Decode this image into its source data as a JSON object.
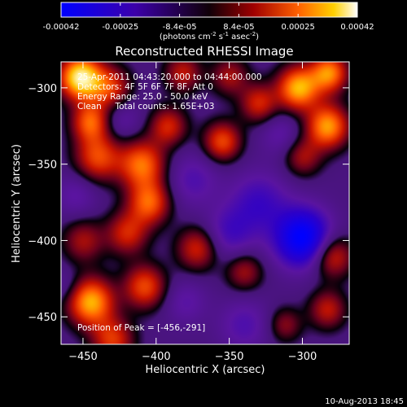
{
  "chart_data": {
    "type": "heatmap",
    "title": "Reconstructed RHESSI Image",
    "xlabel": "Heliocentric X (arcsec)",
    "ylabel": "Heliocentric Y (arcsec)",
    "xlim": [
      -465,
      -268
    ],
    "ylim": [
      -468,
      -283
    ],
    "x_ticks": [
      -450,
      -400,
      -350,
      -300
    ],
    "y_ticks": [
      -300,
      -350,
      -400,
      -450
    ],
    "colorbar": {
      "ticks": [
        "-0.00042",
        "-0.00025",
        "-8.4e-05",
        "8.4e-05",
        "0.00025",
        "0.00042"
      ],
      "range": [
        -0.00042,
        0.00042
      ],
      "unit_prefix": "(photons cm",
      "unit_exp1": "-2",
      "unit_mid": " s",
      "unit_exp2": "-1",
      "unit_mid2": " asec",
      "unit_exp3": "-2",
      "unit_suffix": ")"
    },
    "annotations": [
      "25-Apr-2011 04:43:20.000 to 04:44:00.000",
      "Detectors: 4F 5F 6F 7F 8F, Att 0",
      "Energy Range: 25.0 - 50.0 keV",
      "Clean     Total counts: 1.65E+03"
    ],
    "peak_label": "Position of Peak = [-456,-291]",
    "features": [
      {
        "x": -452,
        "y": -293,
        "v": 1.0,
        "s": 10
      },
      {
        "x": -445,
        "y": -322,
        "v": 0.6,
        "s": 9
      },
      {
        "x": -432,
        "y": -300,
        "v": 0.5,
        "s": 10
      },
      {
        "x": -440,
        "y": -345,
        "v": 0.55,
        "s": 11
      },
      {
        "x": -410,
        "y": -350,
        "v": 0.65,
        "s": 11
      },
      {
        "x": -405,
        "y": -375,
        "v": 0.6,
        "s": 10
      },
      {
        "x": -392,
        "y": -325,
        "v": 0.45,
        "s": 9
      },
      {
        "x": -420,
        "y": -395,
        "v": 0.45,
        "s": 10
      },
      {
        "x": -450,
        "y": -400,
        "v": 0.35,
        "s": 10
      },
      {
        "x": -445,
        "y": -440,
        "v": 0.8,
        "s": 11
      },
      {
        "x": -430,
        "y": -465,
        "v": 0.5,
        "s": 10
      },
      {
        "x": -408,
        "y": -430,
        "v": 0.55,
        "s": 10
      },
      {
        "x": -372,
        "y": -405,
        "v": 0.45,
        "s": 10
      },
      {
        "x": -340,
        "y": -420,
        "v": 0.35,
        "s": 9
      },
      {
        "x": -382,
        "y": -290,
        "v": 0.4,
        "s": 9
      },
      {
        "x": -350,
        "y": -292,
        "v": 0.35,
        "s": 9
      },
      {
        "x": -355,
        "y": -335,
        "v": 0.55,
        "s": 9
      },
      {
        "x": -330,
        "y": -310,
        "v": 0.45,
        "s": 9
      },
      {
        "x": -303,
        "y": -300,
        "v": 0.8,
        "s": 10
      },
      {
        "x": -282,
        "y": -290,
        "v": 0.7,
        "s": 9
      },
      {
        "x": -283,
        "y": -325,
        "v": 0.75,
        "s": 10
      },
      {
        "x": -300,
        "y": -345,
        "v": 0.35,
        "s": 9
      },
      {
        "x": -280,
        "y": -410,
        "v": 0.5,
        "s": 10
      },
      {
        "x": -283,
        "y": -445,
        "v": 0.4,
        "s": 9
      },
      {
        "x": -312,
        "y": -455,
        "v": 0.3,
        "s": 8
      },
      {
        "x": -300,
        "y": -398,
        "v": -0.9,
        "s": 13
      },
      {
        "x": -330,
        "y": -375,
        "v": -0.35,
        "s": 14
      },
      {
        "x": -350,
        "y": -395,
        "v": -0.3,
        "s": 12
      },
      {
        "x": -375,
        "y": -360,
        "v": -0.25,
        "s": 12
      },
      {
        "x": -340,
        "y": -455,
        "v": -0.25,
        "s": 12
      },
      {
        "x": -455,
        "y": -370,
        "v": -0.2,
        "s": 10
      },
      {
        "x": -425,
        "y": -320,
        "v": -0.2,
        "s": 10
      },
      {
        "x": -380,
        "y": -440,
        "v": -0.2,
        "s": 10
      },
      {
        "x": -315,
        "y": -330,
        "v": -0.2,
        "s": 10
      },
      {
        "x": -462,
        "y": -430,
        "v": -0.15,
        "s": 8
      }
    ]
  },
  "footer": {
    "date": "10-Aug-2013 18:45"
  }
}
